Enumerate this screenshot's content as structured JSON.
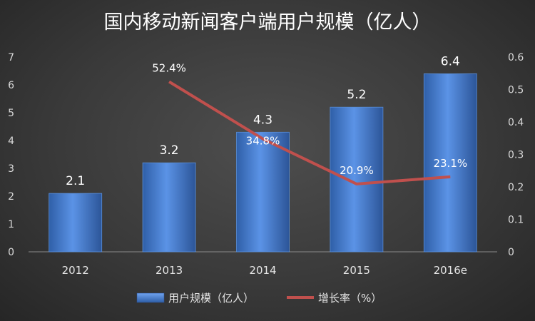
{
  "chart_data": {
    "type": "bar",
    "title": "国内移动新闻客户端用户规模（亿人）",
    "categories": [
      "2012",
      "2013",
      "2014",
      "2015",
      "2016e"
    ],
    "series": [
      {
        "name": "用户规模（亿人）",
        "type": "bar",
        "axis": "left",
        "values": [
          2.1,
          3.2,
          4.3,
          5.2,
          6.4
        ],
        "labels": [
          "2.1",
          "3.2",
          "4.3",
          "5.2",
          "6.4"
        ],
        "color": "#4a7fd0"
      },
      {
        "name": "增长率（%）",
        "type": "line",
        "axis": "right",
        "values": [
          null,
          0.524,
          0.348,
          0.209,
          0.231
        ],
        "labels": [
          "",
          "52.4%",
          "34.8%",
          "20.9%",
          "23.1%"
        ],
        "color": "#c0504d"
      }
    ],
    "y_left": {
      "ylim": [
        0,
        7
      ],
      "ticks": [
        "0",
        "1",
        "2",
        "3",
        "4",
        "5",
        "6",
        "7"
      ]
    },
    "y_right": {
      "ylim": [
        0,
        0.6
      ],
      "ticks": [
        "0",
        "0.1",
        "0.2",
        "0.3",
        "0.4",
        "0.5",
        "0.6"
      ]
    },
    "grid": false,
    "legend_position": "bottom"
  }
}
